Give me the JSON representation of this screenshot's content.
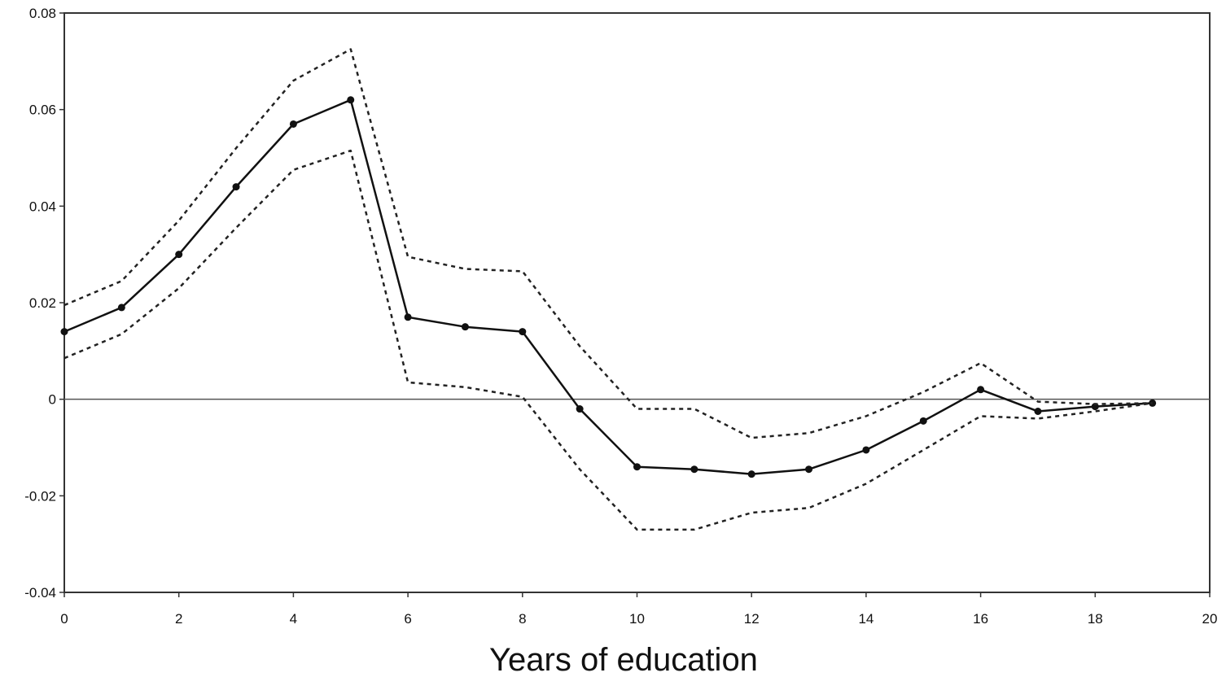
{
  "chart_data": {
    "type": "line",
    "title": "",
    "xlabel": "Years of education",
    "ylabel": "",
    "xlim": [
      0,
      20
    ],
    "ylim": [
      -0.04,
      0.08
    ],
    "x_ticks": [
      0,
      2,
      4,
      6,
      8,
      10,
      12,
      14,
      16,
      18,
      20
    ],
    "x_tick_labels": [
      "0",
      "2",
      "4",
      "6",
      "8",
      "10",
      "12",
      "14",
      "16",
      "18",
      "20"
    ],
    "y_ticks": [
      -0.04,
      -0.02,
      0,
      0.02,
      0.04,
      0.06,
      0.08
    ],
    "y_tick_labels": [
      "-0.04",
      "-0.02",
      "0",
      "0.02",
      "0.04",
      "0.06",
      "0.08"
    ],
    "grid": false,
    "zero_line": true,
    "legend": "none",
    "x": [
      0,
      1,
      2,
      3,
      4,
      5,
      6,
      7,
      8,
      9,
      10,
      11,
      12,
      13,
      14,
      15,
      16,
      17,
      18,
      19
    ],
    "series": [
      {
        "style": "solid-with-markers",
        "color": "#111111",
        "values": [
          0.014,
          0.019,
          0.03,
          0.044,
          0.057,
          0.062,
          0.017,
          0.015,
          0.014,
          -0.002,
          -0.014,
          -0.0145,
          -0.0155,
          -0.0145,
          -0.0105,
          -0.0045,
          0.002,
          -0.0025,
          -0.0015,
          -0.0008
        ]
      },
      {
        "style": "dotted",
        "color": "#222222",
        "values": [
          0.0195,
          0.0245,
          0.037,
          0.052,
          0.066,
          0.0725,
          0.0295,
          0.027,
          0.0265,
          0.011,
          -0.002,
          -0.002,
          -0.008,
          -0.007,
          -0.0035,
          0.0015,
          0.0075,
          -0.0005,
          -0.001,
          -0.0008
        ]
      },
      {
        "style": "dotted",
        "color": "#222222",
        "values": [
          0.0085,
          0.0135,
          0.023,
          0.0355,
          0.0475,
          0.0515,
          0.0035,
          0.0025,
          0.0005,
          -0.0145,
          -0.027,
          -0.027,
          -0.0235,
          -0.0225,
          -0.0175,
          -0.0105,
          -0.0035,
          -0.004,
          -0.0025,
          -0.0008
        ]
      }
    ]
  }
}
